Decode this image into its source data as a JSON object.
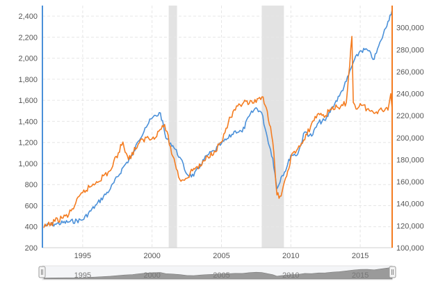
{
  "chart_data": {
    "type": "line",
    "title": "",
    "xlabel": "",
    "x_tick_labels": [
      "1995",
      "2000",
      "2005",
      "2010",
      "2015"
    ],
    "x_ticks": [
      1995,
      2000,
      2005,
      2010,
      2015
    ],
    "xlim": [
      1992.1,
      2017.3
    ],
    "left_axis": {
      "ylim": [
        200,
        2500
      ],
      "ticks": [
        200,
        400,
        600,
        800,
        1000,
        1200,
        1400,
        1600,
        1800,
        2000,
        2200,
        2400
      ],
      "tick_labels": [
        "200",
        "400",
        "600",
        "800",
        "1,000",
        "1,200",
        "1,400",
        "1,600",
        "1,800",
        "2,000",
        "2,200",
        "2,400"
      ]
    },
    "right_axis": {
      "ylim": [
        100000,
        320000
      ],
      "ticks": [
        100000,
        120000,
        140000,
        160000,
        180000,
        200000,
        220000,
        240000,
        260000,
        280000,
        300000
      ],
      "tick_labels": [
        "100,000",
        "120,000",
        "140,000",
        "160,000",
        "180,000",
        "200,000",
        "220,000",
        "240,000",
        "260,000",
        "280,000",
        "300,000"
      ]
    },
    "recession_bands": [
      [
        2001.2,
        2001.8
      ],
      [
        2007.9,
        2009.5
      ]
    ],
    "grid": true,
    "series": [
      {
        "name": "Blue series (left axis)",
        "axis": "left",
        "color": "#4a90d9",
        "x": [
          1992.2,
          1993.0,
          1994.0,
          1995.0,
          1996.0,
          1997.0,
          1998.0,
          1998.6,
          1999.0,
          1999.5,
          2000.0,
          2000.6,
          2001.0,
          2001.5,
          2002.0,
          2002.5,
          2003.0,
          2003.5,
          2004.0,
          2004.5,
          2005.0,
          2005.5,
          2006.0,
          2006.5,
          2007.0,
          2007.5,
          2007.9,
          2008.3,
          2008.7,
          2009.0,
          2009.3,
          2009.7,
          2010.0,
          2010.5,
          2011.0,
          2011.5,
          2012.0,
          2012.5,
          2013.0,
          2013.5,
          2014.0,
          2014.5,
          2015.0,
          2015.5,
          2016.0,
          2016.5,
          2017.0,
          2017.3
        ],
        "values": [
          405,
          425,
          445,
          465,
          610,
          760,
          980,
          1080,
          1210,
          1340,
          1430,
          1480,
          1240,
          1170,
          1060,
          900,
          880,
          990,
          1080,
          1120,
          1190,
          1240,
          1310,
          1300,
          1450,
          1530,
          1480,
          1250,
          1050,
          760,
          870,
          960,
          1080,
          1090,
          1300,
          1260,
          1390,
          1410,
          1540,
          1640,
          1780,
          1960,
          2070,
          2080,
          1990,
          2170,
          2350,
          2460
        ]
      },
      {
        "name": "Orange series (right axis)",
        "axis": "right",
        "color": "#f47c20",
        "x": [
          1992.2,
          1993.0,
          1994.0,
          1995.0,
          1996.0,
          1997.0,
          1997.9,
          1998.3,
          1999.0,
          1999.6,
          2000.0,
          2000.5,
          2000.9,
          2001.5,
          2002.0,
          2002.5,
          2003.0,
          2003.5,
          2004.0,
          2004.5,
          2005.0,
          2005.5,
          2006.0,
          2006.6,
          2007.0,
          2007.5,
          2008.0,
          2008.3,
          2008.7,
          2009.0,
          2009.3,
          2009.7,
          2010.0,
          2010.5,
          2011.0,
          2011.5,
          2012.0,
          2012.5,
          2013.0,
          2013.5,
          2014.0,
          2014.4,
          2014.5,
          2014.7,
          2015.0,
          2015.5,
          2016.0,
          2016.5,
          2017.0,
          2017.2,
          2017.3
        ],
        "values": [
          118000,
          124000,
          130000,
          150000,
          160000,
          170000,
          196000,
          180000,
          194000,
          200000,
          199000,
          206000,
          212000,
          183000,
          162000,
          163000,
          172000,
          174000,
          183000,
          188000,
          196000,
          214000,
          225000,
          232000,
          231000,
          232000,
          237000,
          224000,
          196000,
          148000,
          147000,
          165000,
          182000,
          190000,
          198000,
          213000,
          222000,
          220000,
          228000,
          226000,
          232000,
          292000,
          232000,
          226000,
          231000,
          226000,
          222000,
          227000,
          225000,
          240000,
          226000
        ]
      }
    ]
  }
}
